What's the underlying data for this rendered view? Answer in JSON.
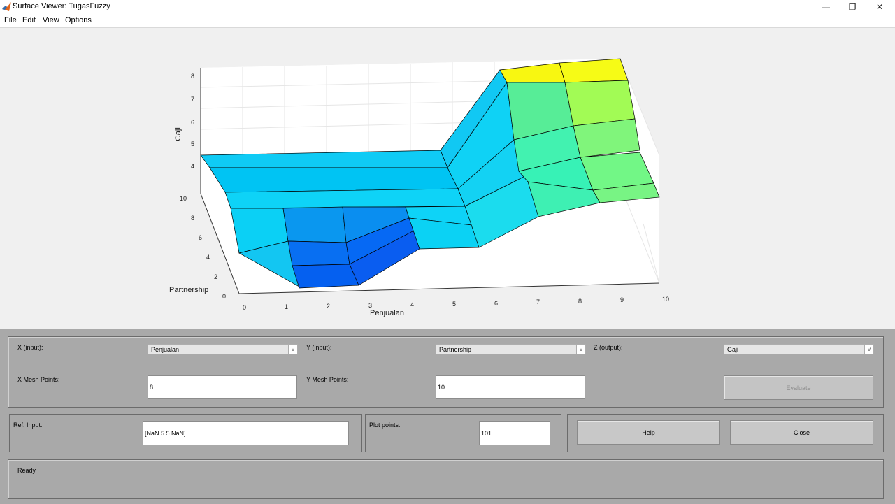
{
  "window": {
    "title": "Surface Viewer: TugasFuzzy",
    "minimize_glyph": "—",
    "maximize_glyph": "❐",
    "close_glyph": "✕",
    "app_icon": "matlab-logo-icon"
  },
  "menu": [
    "File",
    "Edit",
    "View",
    "Options"
  ],
  "plot": {
    "x_axis_label": "Penjualan",
    "y_axis_label": "Partnership",
    "z_axis_label": "Gaji",
    "x_ticks": [
      "0",
      "1",
      "2",
      "3",
      "4",
      "5",
      "6",
      "7",
      "8",
      "9",
      "10"
    ],
    "y_ticks": [
      "0",
      "2",
      "4",
      "6",
      "8",
      "10"
    ],
    "z_ticks": [
      "4",
      "5",
      "6",
      "7",
      "8"
    ]
  },
  "chart_data": {
    "type": "surface",
    "x_label": "Penjualan",
    "y_label": "Partnership",
    "z_label": "Gaji",
    "x_range": [
      0,
      10
    ],
    "y_range": [
      0,
      10
    ],
    "z_range": [
      3.5,
      8.5
    ],
    "colormap": "parula",
    "grid": true
  },
  "controls": {
    "x_input_label": "X (input):",
    "x_input_value": "Penjualan",
    "y_input_label": "Y (input):",
    "y_input_value": "Partnership",
    "z_output_label": "Z (output):",
    "z_output_value": "Gaji",
    "x_mesh_label": "X Mesh Points:",
    "x_mesh_value": "8",
    "y_mesh_label": "Y Mesh Points:",
    "y_mesh_value": "10",
    "evaluate_label": "Evaluate",
    "ref_input_label": "Ref. Input:",
    "ref_input_value": "[NaN 5 5 NaN]",
    "plot_points_label": "Plot points:",
    "plot_points_value": "101",
    "help_label": "Help",
    "close_label": "Close",
    "dropdown_arrow": "v"
  },
  "status": {
    "text": "Ready"
  }
}
